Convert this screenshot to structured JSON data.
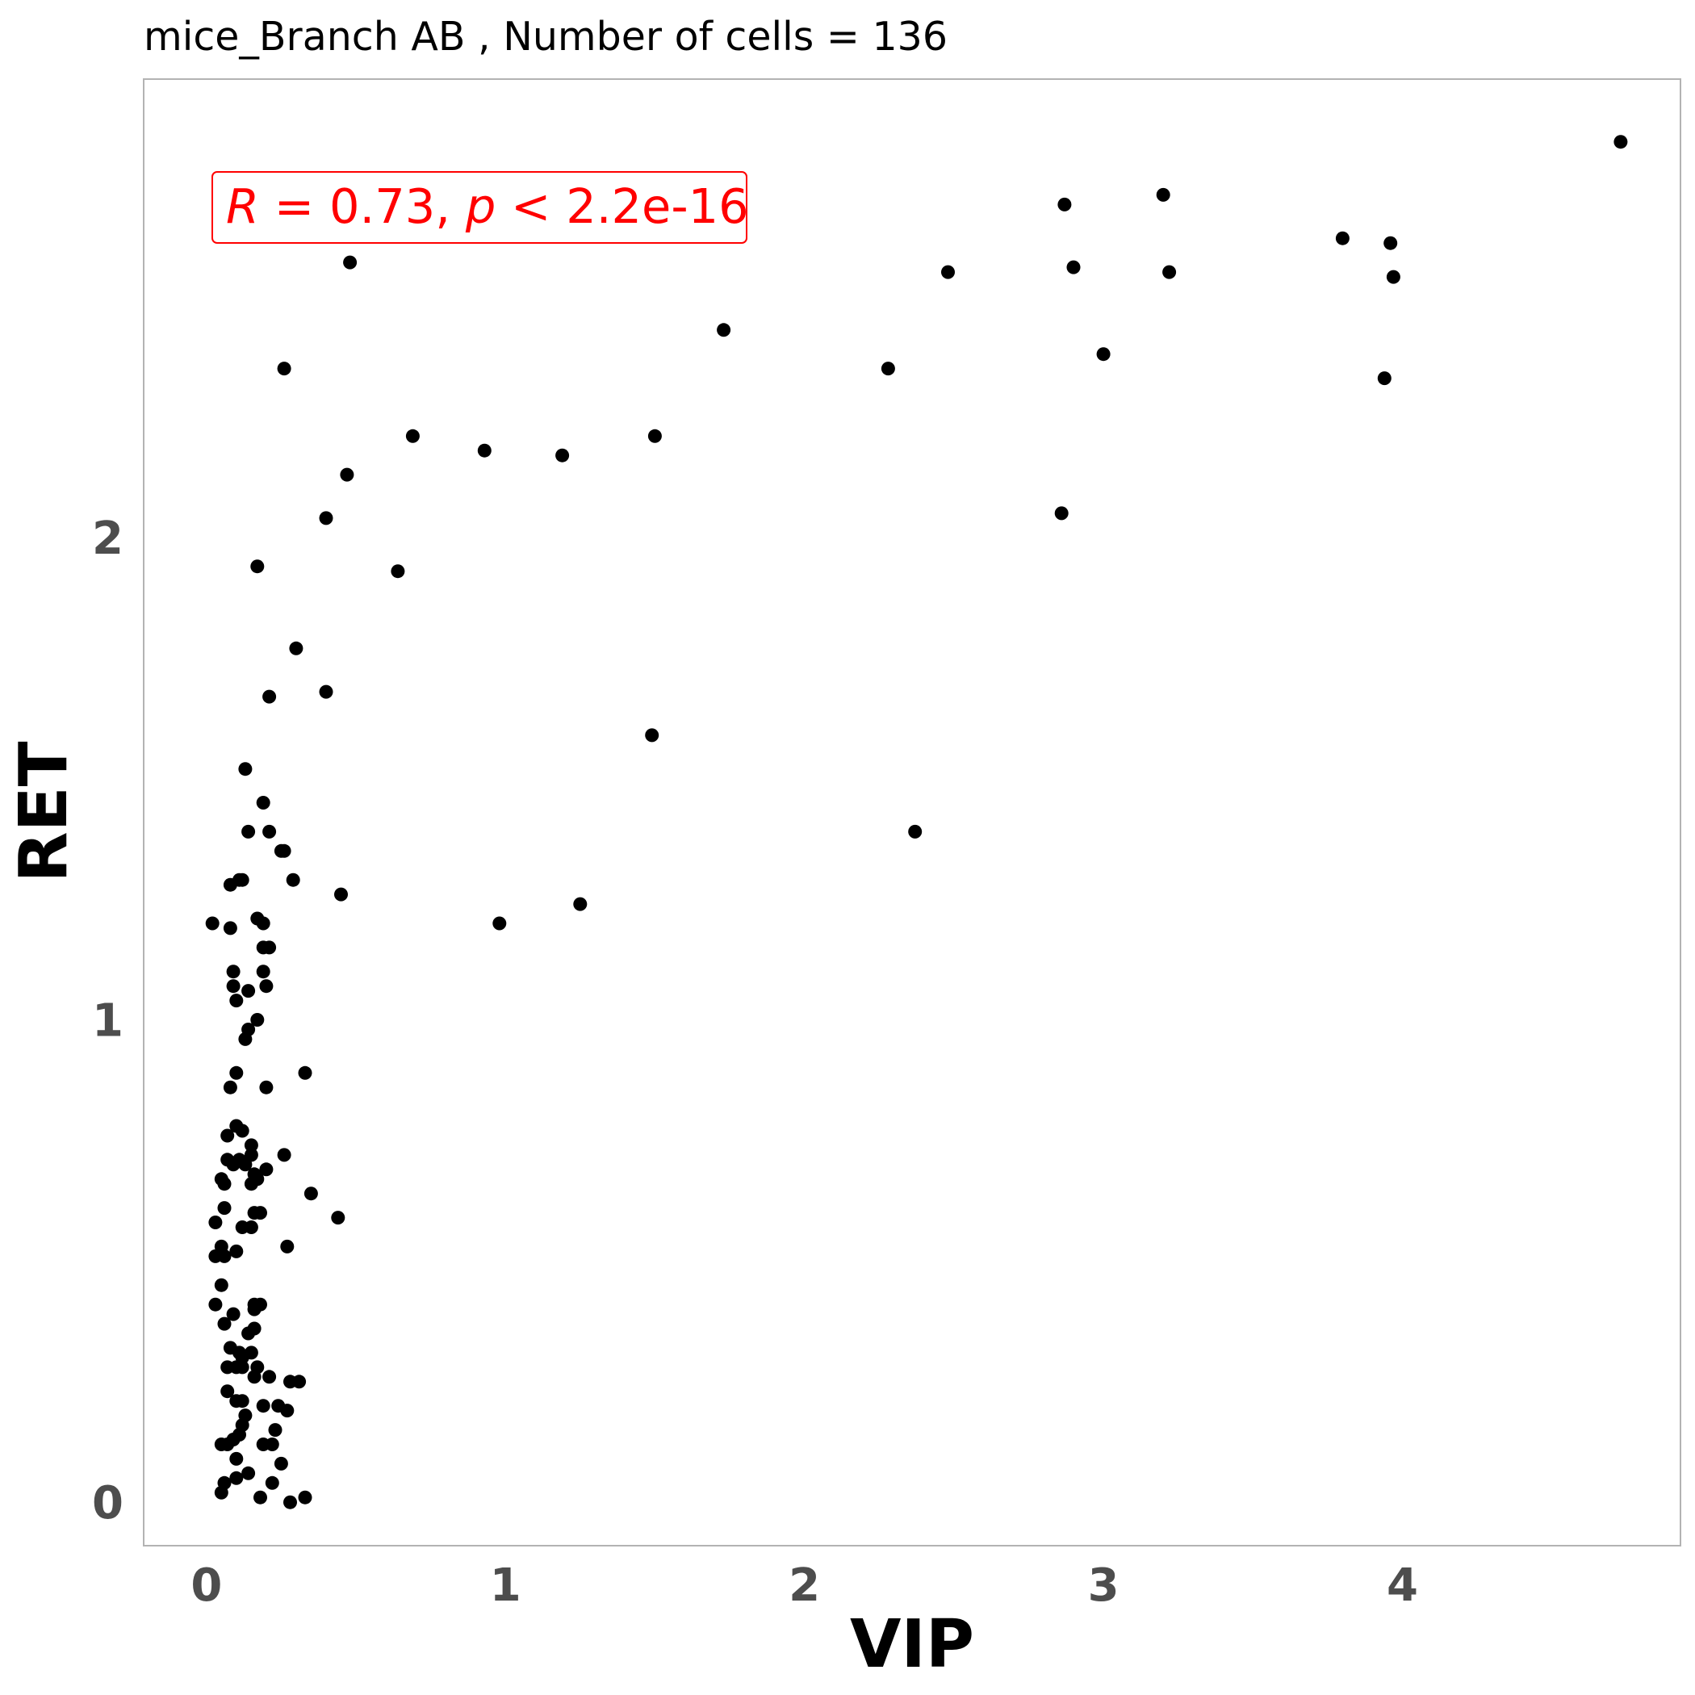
{
  "chart_data": {
    "type": "scatter",
    "title": "mice_Branch AB , Number of cells =  136",
    "xlabel": "VIP",
    "ylabel": "RET",
    "xlim": [
      -0.21,
      4.93
    ],
    "ylim": [
      -0.09,
      2.95
    ],
    "xticks": [
      0,
      1,
      2,
      3,
      4
    ],
    "yticks": [
      0,
      1,
      2
    ],
    "grid": false,
    "annotation": {
      "R_label": "R",
      "eq_label": " = 0.73, ",
      "p_label": "p",
      "p_rest": " < 2.2e-16",
      "color": "#ff0000",
      "position": "top-left"
    },
    "point_color": "#000000",
    "points": [
      [
        0.48,
        2.57
      ],
      [
        0.26,
        2.35
      ],
      [
        0.69,
        2.21
      ],
      [
        0.93,
        2.18
      ],
      [
        1.19,
        2.17
      ],
      [
        1.5,
        2.21
      ],
      [
        1.73,
        2.43
      ],
      [
        2.28,
        2.35
      ],
      [
        2.48,
        2.55
      ],
      [
        2.87,
        2.69
      ],
      [
        2.9,
        2.56
      ],
      [
        3.0,
        2.38
      ],
      [
        3.2,
        2.71
      ],
      [
        3.22,
        2.55
      ],
      [
        3.8,
        2.62
      ],
      [
        3.96,
        2.61
      ],
      [
        3.97,
        2.54
      ],
      [
        3.94,
        2.33
      ],
      [
        4.73,
        2.82
      ],
      [
        2.86,
        2.05
      ],
      [
        0.47,
        2.13
      ],
      [
        0.4,
        2.04
      ],
      [
        0.64,
        1.93
      ],
      [
        0.17,
        1.94
      ],
      [
        0.3,
        1.77
      ],
      [
        0.4,
        1.68
      ],
      [
        0.21,
        1.67
      ],
      [
        1.49,
        1.59
      ],
      [
        2.37,
        1.39
      ],
      [
        1.25,
        1.24
      ],
      [
        0.98,
        1.2
      ],
      [
        0.45,
        1.26
      ],
      [
        0.13,
        1.52
      ],
      [
        0.19,
        1.45
      ],
      [
        0.14,
        1.39
      ],
      [
        0.21,
        1.39
      ],
      [
        0.25,
        1.35
      ],
      [
        0.26,
        1.35
      ],
      [
        0.12,
        1.29
      ],
      [
        0.11,
        1.29
      ],
      [
        0.08,
        1.28
      ],
      [
        0.29,
        1.29
      ],
      [
        0.02,
        1.2
      ],
      [
        0.08,
        1.19
      ],
      [
        0.17,
        1.21
      ],
      [
        0.19,
        1.2
      ],
      [
        0.19,
        1.15
      ],
      [
        0.21,
        1.15
      ],
      [
        0.09,
        1.1
      ],
      [
        0.19,
        1.1
      ],
      [
        0.09,
        1.07
      ],
      [
        0.2,
        1.07
      ],
      [
        0.14,
        1.06
      ],
      [
        0.1,
        1.04
      ],
      [
        0.17,
        1.0
      ],
      [
        0.14,
        0.98
      ],
      [
        0.13,
        0.96
      ],
      [
        0.1,
        0.89
      ],
      [
        0.33,
        0.89
      ],
      [
        0.08,
        0.86
      ],
      [
        0.2,
        0.86
      ],
      [
        0.1,
        0.78
      ],
      [
        0.12,
        0.77
      ],
      [
        0.07,
        0.76
      ],
      [
        0.15,
        0.74
      ],
      [
        0.15,
        0.72
      ],
      [
        0.26,
        0.72
      ],
      [
        0.07,
        0.71
      ],
      [
        0.09,
        0.7
      ],
      [
        0.11,
        0.71
      ],
      [
        0.13,
        0.7
      ],
      [
        0.2,
        0.69
      ],
      [
        0.16,
        0.68
      ],
      [
        0.05,
        0.67
      ],
      [
        0.06,
        0.66
      ],
      [
        0.15,
        0.66
      ],
      [
        0.17,
        0.67
      ],
      [
        0.35,
        0.64
      ],
      [
        0.06,
        0.61
      ],
      [
        0.16,
        0.6
      ],
      [
        0.18,
        0.6
      ],
      [
        0.44,
        0.59
      ],
      [
        0.03,
        0.58
      ],
      [
        0.12,
        0.57
      ],
      [
        0.15,
        0.57
      ],
      [
        0.05,
        0.53
      ],
      [
        0.06,
        0.51
      ],
      [
        0.1,
        0.52
      ],
      [
        0.03,
        0.51
      ],
      [
        0.27,
        0.53
      ],
      [
        0.05,
        0.45
      ],
      [
        0.03,
        0.41
      ],
      [
        0.16,
        0.41
      ],
      [
        0.18,
        0.41
      ],
      [
        0.09,
        0.39
      ],
      [
        0.16,
        0.4
      ],
      [
        0.06,
        0.37
      ],
      [
        0.16,
        0.36
      ],
      [
        0.14,
        0.35
      ],
      [
        0.08,
        0.32
      ],
      [
        0.11,
        0.31
      ],
      [
        0.15,
        0.31
      ],
      [
        0.12,
        0.3
      ],
      [
        0.07,
        0.28
      ],
      [
        0.1,
        0.28
      ],
      [
        0.12,
        0.28
      ],
      [
        0.17,
        0.28
      ],
      [
        0.16,
        0.26
      ],
      [
        0.21,
        0.26
      ],
      [
        0.28,
        0.25
      ],
      [
        0.31,
        0.25
      ],
      [
        0.07,
        0.23
      ],
      [
        0.1,
        0.21
      ],
      [
        0.12,
        0.21
      ],
      [
        0.19,
        0.2
      ],
      [
        0.24,
        0.2
      ],
      [
        0.27,
        0.19
      ],
      [
        0.13,
        0.18
      ],
      [
        0.12,
        0.16
      ],
      [
        0.11,
        0.14
      ],
      [
        0.23,
        0.15
      ],
      [
        0.05,
        0.12
      ],
      [
        0.07,
        0.12
      ],
      [
        0.09,
        0.13
      ],
      [
        0.19,
        0.12
      ],
      [
        0.22,
        0.12
      ],
      [
        0.1,
        0.09
      ],
      [
        0.1,
        0.05
      ],
      [
        0.33,
        0.01
      ],
      [
        0.05,
        0.02
      ],
      [
        0.18,
        0.01
      ],
      [
        0.28,
        0.0
      ],
      [
        0.14,
        0.06
      ],
      [
        0.22,
        0.04
      ],
      [
        0.06,
        0.04
      ],
      [
        0.25,
        0.08
      ]
    ]
  }
}
